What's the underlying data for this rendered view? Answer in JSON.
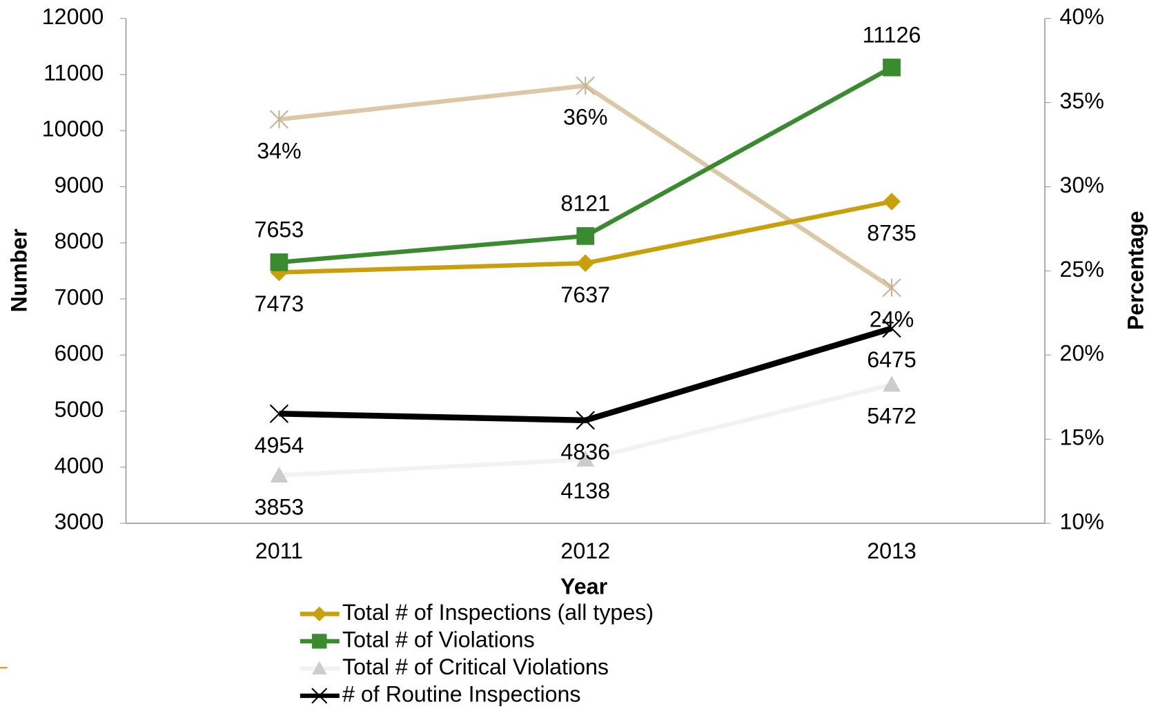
{
  "chart_data": {
    "type": "line",
    "xlabel": "Year",
    "ylabel": "Number",
    "y2label": "Percentage",
    "categories": [
      "2011",
      "2012",
      "2013"
    ],
    "ylim": [
      3000,
      12000
    ],
    "yticks": [
      3000,
      4000,
      5000,
      6000,
      7000,
      8000,
      9000,
      10000,
      11000,
      12000
    ],
    "y2lim": [
      10,
      40
    ],
    "y2ticks": [
      {
        "value": 10,
        "label": "10%"
      },
      {
        "value": 15,
        "label": "15%"
      },
      {
        "value": 20,
        "label": "20%"
      },
      {
        "value": 25,
        "label": "25%"
      },
      {
        "value": 30,
        "label": "30%"
      },
      {
        "value": 35,
        "label": "35%"
      },
      {
        "value": 40,
        "label": "40%"
      }
    ],
    "series": [
      {
        "color": "#dcc8a6",
        "marker": "star",
        "axis": "y2",
        "values": [
          34,
          36,
          24
        ],
        "value_labels": [
          "34%",
          "36%",
          "24%"
        ]
      },
      {
        "name": "Total # of Inspections (all types)",
        "color": "#c9a00c",
        "marker": "diamond",
        "values": [
          7473,
          7637,
          8735
        ]
      },
      {
        "name": "Total # of Violations",
        "color": "#3a8a30",
        "marker": "square",
        "values": [
          7653,
          8121,
          11126
        ]
      },
      {
        "name": "Total # of Critical Violations",
        "color": "#f2f2f2",
        "marker": "triangle",
        "values": [
          3853,
          4138,
          5472
        ]
      },
      {
        "name": "# of Routine Inspections",
        "color": "#000000",
        "marker": "x",
        "values": [
          4954,
          4836,
          6475
        ]
      }
    ]
  }
}
